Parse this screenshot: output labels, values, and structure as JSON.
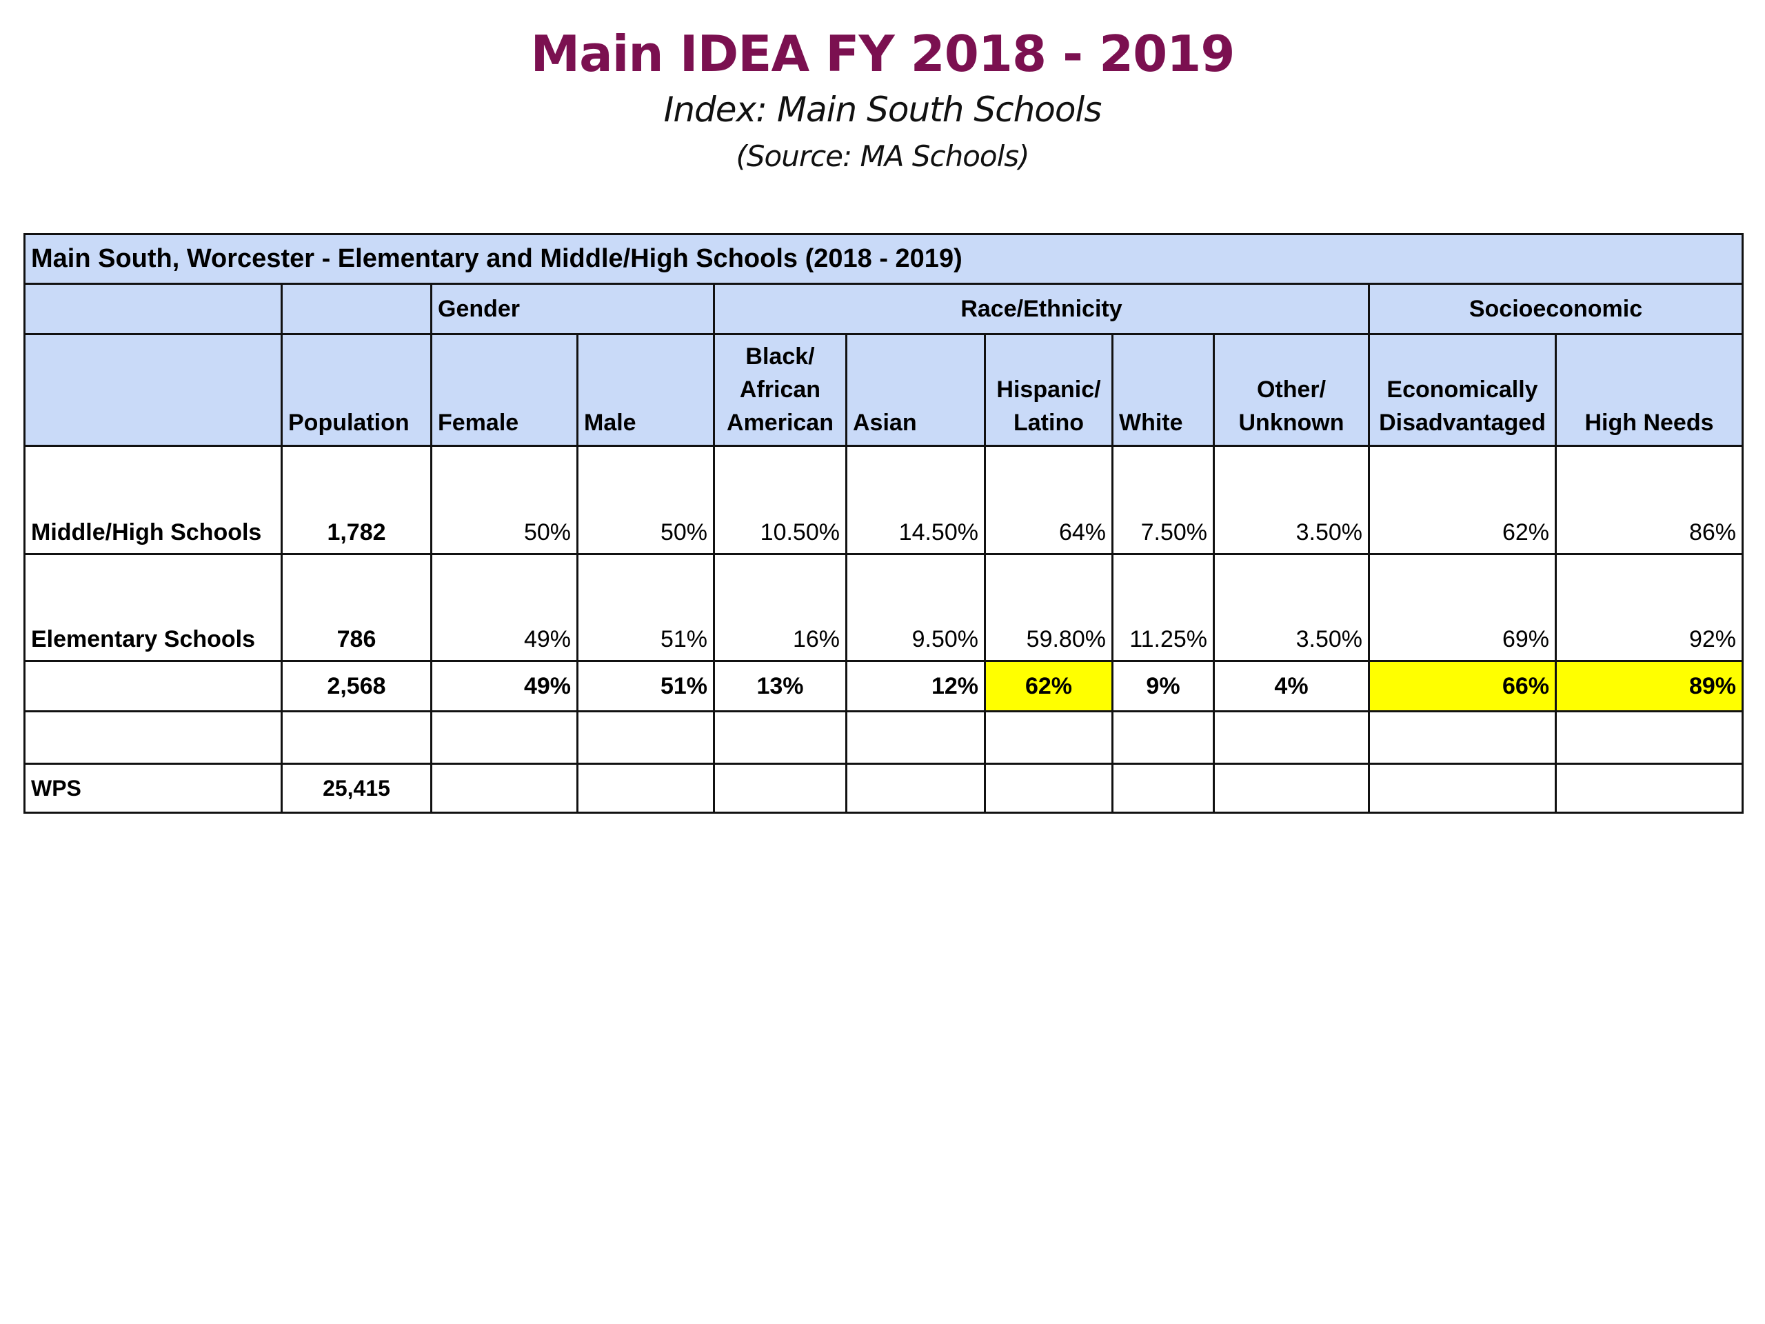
{
  "title": "Main IDEA FY 2018 - 2019",
  "subtitle": "Index: Main South Schools",
  "source": "(Source: MA Schools)",
  "table": {
    "caption": "Main South, Worcester - Elementary and Middle/High Schools (2018 - 2019)",
    "groups": {
      "gender": "Gender",
      "race": "Race/Ethnicity",
      "socio": "Socioeconomic"
    },
    "columns": {
      "population": "Population",
      "female": "Female",
      "male": "Male",
      "black1": "Black/",
      "black2": "African",
      "black3": "American",
      "asian": "Asian",
      "hisp1": "Hispanic/",
      "hisp2": "Latino",
      "white": "White",
      "other1": "Other/",
      "other2": "Unknown",
      "econ1": "Economically",
      "econ2": "Disadvantaged",
      "high_needs": "High Needs"
    },
    "rows": [
      {
        "label": "Middle/High Schools",
        "population": "1,782",
        "female": "50%",
        "male": "50%",
        "black": "10.50%",
        "asian": "14.50%",
        "hispanic": "64%",
        "white": "7.50%",
        "other": "3.50%",
        "econ": "62%",
        "high_needs": "86%"
      },
      {
        "label": "Elementary Schools",
        "population": "786",
        "female": "49%",
        "male": "51%",
        "black": "16%",
        "asian": "9.50%",
        "hispanic": "59.80%",
        "white": "11.25%",
        "other": "3.50%",
        "econ": "69%",
        "high_needs": "92%"
      },
      {
        "label": "",
        "population": "2,568",
        "female": "49%",
        "male": "51%",
        "black": "13%",
        "asian": "12%",
        "hispanic": "62%",
        "white": "9%",
        "other": "4%",
        "econ": "66%",
        "high_needs": "89%"
      }
    ],
    "wps": {
      "label": "WPS",
      "population": "25,415"
    },
    "highlight_color": "#ffff00",
    "header_color": "#c9daf8"
  }
}
